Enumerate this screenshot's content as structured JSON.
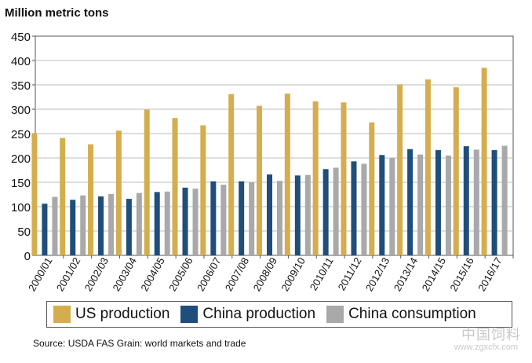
{
  "chart_data": {
    "type": "bar",
    "ylabel": "Million metric tons",
    "categories": [
      "2000/01",
      "2001/02",
      "2002/03",
      "2003/04",
      "2004/05",
      "2005/06",
      "2006/07",
      "2007/08",
      "2008/09",
      "2009/10",
      "2010/11",
      "2011/12",
      "2012/13",
      "2013/14",
      "2014/15",
      "2015/16",
      "2016/17"
    ],
    "series": [
      {
        "name": "US production",
        "color": "#d4ae4e",
        "values": [
          251,
          241,
          228,
          256,
          299,
          282,
          267,
          331,
          307,
          332,
          316,
          314,
          273,
          351,
          361,
          345,
          385
        ]
      },
      {
        "name": "China production",
        "color": "#1f4e7a",
        "values": [
          106,
          114,
          121,
          116,
          130,
          139,
          152,
          152,
          166,
          164,
          177,
          193,
          206,
          218,
          216,
          224,
          216
        ]
      },
      {
        "name": "China consumption",
        "color": "#a9a9a9",
        "values": [
          120,
          123,
          126,
          128,
          131,
          137,
          145,
          150,
          153,
          165,
          180,
          188,
          200,
          207,
          205,
          217,
          225
        ]
      }
    ],
    "ylim": [
      0,
      450
    ],
    "yticks": [
      0,
      50,
      100,
      150,
      200,
      250,
      300,
      350,
      400,
      450
    ],
    "grid": true,
    "legend_position": "bottom"
  },
  "legend": {
    "items": [
      {
        "label": "US production",
        "color": "#d4ae4e"
      },
      {
        "label": "China production",
        "color": "#1f4e7a"
      },
      {
        "label": "China consumption",
        "color": "#a9a9a9"
      }
    ]
  },
  "source": "Source: USDA FAS Grain: world markets and trade",
  "watermark": {
    "text": "中国饲料",
    "url": "www.zgxcfx.com"
  }
}
